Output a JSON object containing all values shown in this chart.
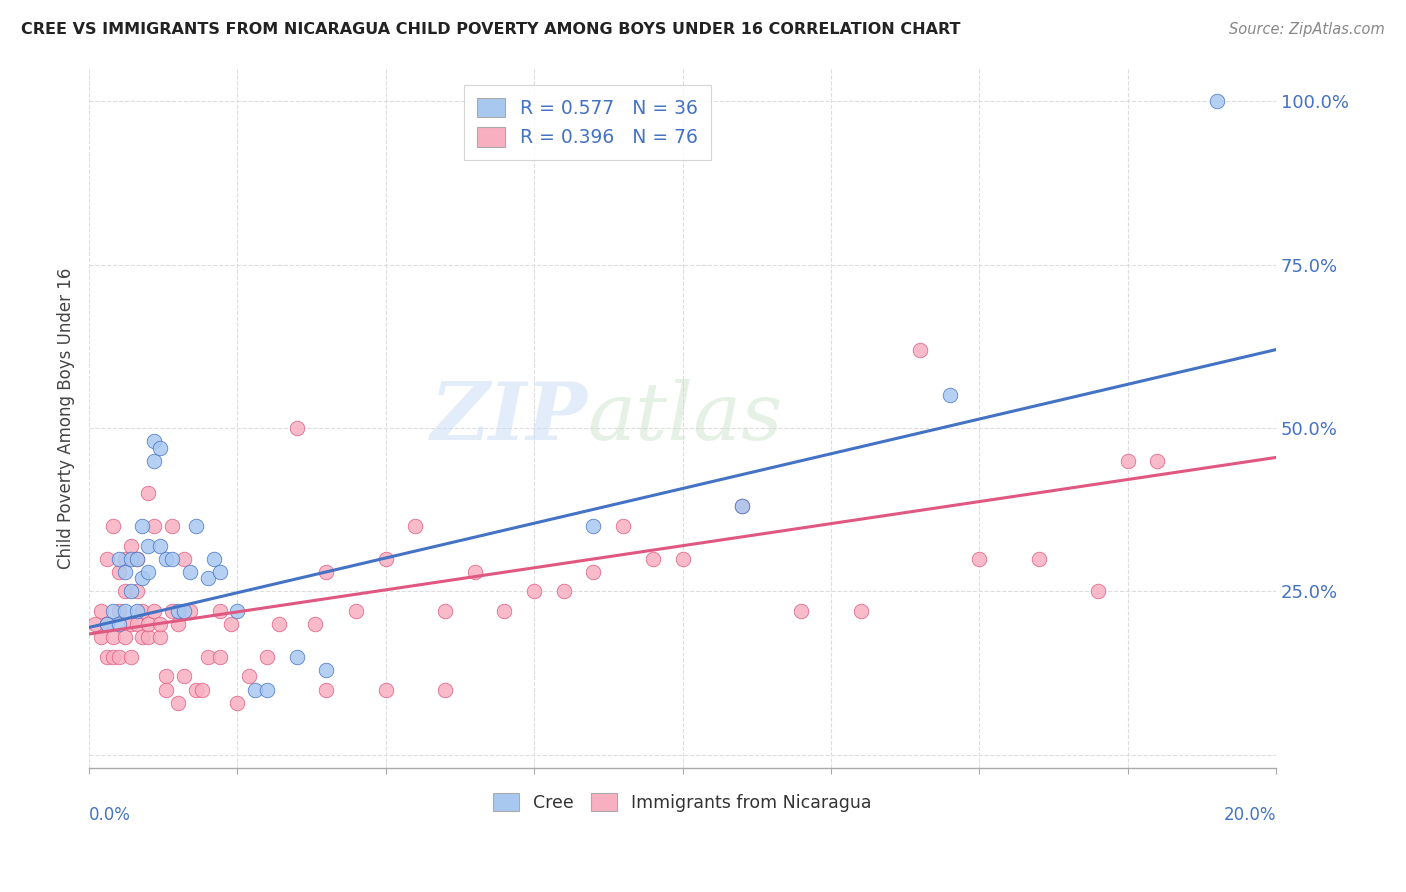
{
  "title": "CREE VS IMMIGRANTS FROM NICARAGUA CHILD POVERTY AMONG BOYS UNDER 16 CORRELATION CHART",
  "source": "Source: ZipAtlas.com",
  "ylabel": "Child Poverty Among Boys Under 16",
  "right_yticks": [
    0.0,
    0.25,
    0.5,
    0.75,
    1.0
  ],
  "right_yticklabels": [
    "",
    "25.0%",
    "50.0%",
    "75.0%",
    "100.0%"
  ],
  "legend_line1": "R = 0.577   N = 36",
  "legend_line2": "R = 0.396   N = 76",
  "cree_color": "#a8c8f0",
  "nicaragua_color": "#f8b0c0",
  "cree_line_color": "#4472c4",
  "nicaragua_line_color": "#e05880",
  "label_color": "#4472c4",
  "cree_scatter_x": [
    0.0003,
    0.0004,
    0.0005,
    0.0005,
    0.0006,
    0.0006,
    0.0007,
    0.0007,
    0.0008,
    0.0008,
    0.0009,
    0.0009,
    0.001,
    0.001,
    0.0011,
    0.0011,
    0.0012,
    0.0012,
    0.0013,
    0.0014,
    0.0015,
    0.0016,
    0.0017,
    0.0018,
    0.002,
    0.0021,
    0.0022,
    0.0025,
    0.0028,
    0.003,
    0.0035,
    0.004,
    0.0085,
    0.011,
    0.0145,
    0.019
  ],
  "cree_scatter_y": [
    0.2,
    0.22,
    0.2,
    0.3,
    0.22,
    0.28,
    0.25,
    0.3,
    0.22,
    0.3,
    0.27,
    0.35,
    0.28,
    0.32,
    0.45,
    0.48,
    0.47,
    0.32,
    0.3,
    0.3,
    0.22,
    0.22,
    0.28,
    0.35,
    0.27,
    0.3,
    0.28,
    0.22,
    0.1,
    0.1,
    0.15,
    0.13,
    0.35,
    0.38,
    0.55,
    1.0
  ],
  "nicaragua_scatter_x": [
    0.0001,
    0.0002,
    0.0002,
    0.0003,
    0.0003,
    0.0003,
    0.0004,
    0.0004,
    0.0004,
    0.0005,
    0.0005,
    0.0005,
    0.0006,
    0.0006,
    0.0006,
    0.0007,
    0.0007,
    0.0007,
    0.0008,
    0.0008,
    0.0008,
    0.0009,
    0.0009,
    0.001,
    0.001,
    0.001,
    0.0011,
    0.0011,
    0.0012,
    0.0012,
    0.0013,
    0.0013,
    0.0014,
    0.0014,
    0.0015,
    0.0015,
    0.0016,
    0.0016,
    0.0017,
    0.0018,
    0.0019,
    0.002,
    0.0022,
    0.0022,
    0.0024,
    0.0025,
    0.0027,
    0.003,
    0.0032,
    0.0035,
    0.0038,
    0.004,
    0.0045,
    0.005,
    0.0055,
    0.006,
    0.0065,
    0.007,
    0.0075,
    0.008,
    0.0085,
    0.009,
    0.0095,
    0.01,
    0.011,
    0.012,
    0.013,
    0.014,
    0.015,
    0.016,
    0.017,
    0.0175,
    0.004,
    0.005,
    0.006,
    0.018
  ],
  "nicaragua_scatter_y": [
    0.2,
    0.18,
    0.22,
    0.15,
    0.2,
    0.3,
    0.15,
    0.18,
    0.35,
    0.15,
    0.22,
    0.28,
    0.18,
    0.25,
    0.3,
    0.15,
    0.2,
    0.32,
    0.2,
    0.25,
    0.3,
    0.18,
    0.22,
    0.18,
    0.2,
    0.4,
    0.22,
    0.35,
    0.18,
    0.2,
    0.12,
    0.1,
    0.22,
    0.35,
    0.08,
    0.2,
    0.12,
    0.3,
    0.22,
    0.1,
    0.1,
    0.15,
    0.15,
    0.22,
    0.2,
    0.08,
    0.12,
    0.15,
    0.2,
    0.5,
    0.2,
    0.28,
    0.22,
    0.3,
    0.35,
    0.22,
    0.28,
    0.22,
    0.25,
    0.25,
    0.28,
    0.35,
    0.3,
    0.3,
    0.38,
    0.22,
    0.22,
    0.62,
    0.3,
    0.3,
    0.25,
    0.45,
    0.1,
    0.1,
    0.1,
    0.45
  ],
  "cree_trendline_x": [
    0.0,
    0.02
  ],
  "cree_trendline_y": [
    0.195,
    0.62
  ],
  "nica_trendline_x": [
    0.0,
    0.02
  ],
  "nica_trendline_y": [
    0.185,
    0.455
  ],
  "xlim": [
    0.0,
    0.02
  ],
  "ylim": [
    -0.02,
    1.05
  ],
  "background_color": "#ffffff",
  "grid_color": "#dddddd",
  "watermark": "ZIPatlas"
}
